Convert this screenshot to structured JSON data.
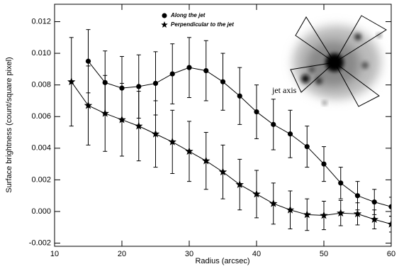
{
  "chart_data": {
    "type": "errorbar",
    "xlabel": "Radius (arcsec)",
    "ylabel": "Surface brightness (count/square pixel)",
    "annotation": "jet axis",
    "x": [
      12.5,
      15,
      17.5,
      20,
      22.5,
      25,
      27.5,
      30,
      32.5,
      35,
      37.5,
      40,
      42.5,
      45,
      47.5,
      50,
      52.5,
      55,
      57.5,
      60
    ],
    "series": [
      {
        "name": "Along the jet",
        "color": "#000000",
        "marker": "circle",
        "values": [
          null,
          0.0095,
          0.00815,
          0.0078,
          0.0079,
          0.0081,
          0.0087,
          0.0091,
          0.0089,
          0.0082,
          0.0073,
          0.0063,
          0.0055,
          0.0049,
          0.0041,
          0.003,
          0.0018,
          0.001,
          0.0006,
          0.0003
        ],
        "errors": [
          null,
          0.002,
          0.002,
          0.002,
          0.002,
          0.002,
          0.0019,
          0.0019,
          0.0019,
          0.0018,
          0.0018,
          0.0017,
          0.0016,
          0.0015,
          0.0013,
          0.0011,
          0.001,
          0.0009,
          0.0008,
          0.0006
        ]
      },
      {
        "name": "Perpendicular to the jet",
        "color": "#000000",
        "marker": "star",
        "values": [
          0.0082,
          0.0067,
          0.0062,
          0.0058,
          0.0054,
          0.0049,
          0.0044,
          0.0038,
          0.0032,
          0.0025,
          0.0017,
          0.0011,
          0.0005,
          0.0001,
          -0.0002,
          -0.00025,
          -0.0001,
          -0.00015,
          -0.0005,
          -0.0008
        ],
        "errors": [
          0.0028,
          0.0025,
          0.0024,
          0.0023,
          0.0022,
          0.0021,
          0.002,
          0.0019,
          0.0018,
          0.0017,
          0.0016,
          0.0015,
          0.0013,
          0.0012,
          0.001,
          0.0009,
          0.0008,
          0.0007,
          0.0006,
          0.0005
        ]
      }
    ],
    "xlim": [
      10,
      60
    ],
    "xticks": [
      10,
      20,
      30,
      40,
      50,
      60
    ],
    "ylim": [
      -0.0022,
      0.0131
    ],
    "yticks": [
      {
        "value": -0.002,
        "label": "-0.002"
      },
      {
        "value": 0,
        "label": "0.000"
      },
      {
        "value": 0.002,
        "label": "0.002"
      },
      {
        "value": 0.004,
        "label": "0.004"
      },
      {
        "value": 0.006,
        "label": "0.006"
      },
      {
        "value": 0.008,
        "label": "0.008"
      },
      {
        "value": 0.01,
        "label": "0.010"
      },
      {
        "value": 0.012,
        "label": "0.012"
      }
    ]
  }
}
